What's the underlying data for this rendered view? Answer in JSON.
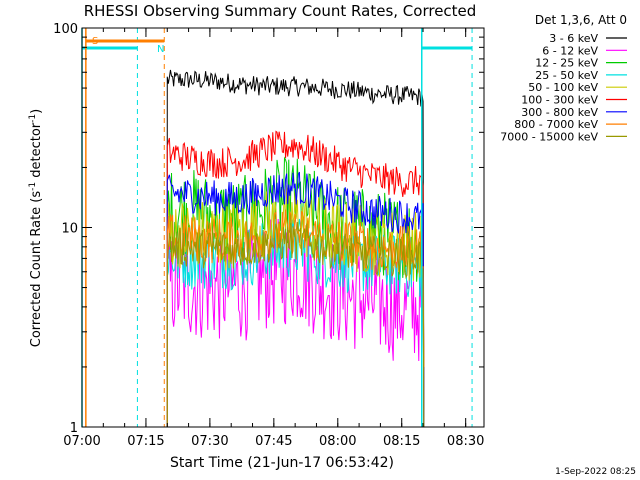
{
  "chart_data": {
    "type": "line",
    "title": "RHESSI Observing Summary Count Rates, Corrected",
    "xlabel": "Start Time (21-Jun-17 06:53:42)",
    "ylabel_main": "Corrected Count Rate (s",
    "ylabel_sup1": "-1",
    "ylabel_mid": " detector",
    "ylabel_sup2": "-1",
    "ylabel_end": ")",
    "yscale": "log",
    "ylim": [
      1,
      100
    ],
    "xlim_minutes": [
      6.3,
      100.6
    ],
    "x_tick_labels": [
      "07:00",
      "07:15",
      "07:30",
      "07:45",
      "08:00",
      "08:15",
      "08:30"
    ],
    "x_tick_minutes": [
      6.3,
      21.3,
      36.3,
      51.3,
      66.3,
      81.3,
      96.3
    ],
    "y_tick_labels": [
      "1",
      "10",
      "100"
    ],
    "y_tick_values": [
      1,
      10,
      100
    ],
    "legend_title": "Det 1,3,6, Att 0",
    "legend_position": "right",
    "date_stamp": "1-Sep-2022 08:25",
    "markers": {
      "saa_label": "S",
      "night_label": "N",
      "saa_color": "#ff7f00",
      "night_color": "#00e0e0"
    },
    "series": [
      {
        "name": "3 - 6 keV",
        "color": "#000000",
        "level": [
          55,
          55,
          54,
          52,
          51,
          51,
          50,
          49,
          47,
          46,
          45
        ]
      },
      {
        "name": "6 - 12 keV",
        "color": "#ff00ff",
        "level": [
          5.2,
          5.1,
          5.0,
          5.1,
          5.8,
          6.2,
          5.2,
          4.6,
          4.3,
          4.0,
          3.9
        ]
      },
      {
        "name": "12 - 25 keV",
        "color": "#00cc00",
        "level": [
          12,
          12,
          11,
          11,
          13,
          14,
          11,
          10,
          9.5,
          9,
          8.5
        ]
      },
      {
        "name": "25 - 50 keV",
        "color": "#00e0e0",
        "level": [
          7.2,
          7.0,
          7.0,
          7.1,
          7.7,
          8.0,
          7.2,
          6.8,
          6.6,
          6.4,
          6.2
        ]
      },
      {
        "name": "50 - 100 keV",
        "color": "#cccc00",
        "level": [
          9.5,
          9.3,
          9.2,
          9.3,
          10.5,
          11,
          9.5,
          9.0,
          8.6,
          8.3,
          8.0
        ]
      },
      {
        "name": "100 - 300 keV",
        "color": "#ff0000",
        "level": [
          24,
          22,
          21,
          22,
          25,
          26,
          23,
          20,
          18,
          17,
          17
        ]
      },
      {
        "name": "300 - 800 keV",
        "color": "#0000ff",
        "level": [
          15,
          14.5,
          14,
          14,
          15.5,
          16,
          14.5,
          13,
          12,
          11.5,
          11
        ]
      },
      {
        "name": "800 - 7000 keV",
        "color": "#ff7f00",
        "level": [
          9.0,
          8.8,
          8.6,
          8.6,
          9.2,
          9.6,
          8.8,
          8.4,
          8.0,
          7.8,
          7.6
        ]
      },
      {
        "name": "7000 - 15000 keV",
        "color": "#999900",
        "level": [
          8.0,
          7.9,
          7.8,
          7.8,
          8.3,
          8.6,
          8.0,
          7.6,
          7.3,
          7.1,
          7.0
        ]
      }
    ],
    "data_interval_minutes": [
      26.3,
      86.5
    ]
  }
}
